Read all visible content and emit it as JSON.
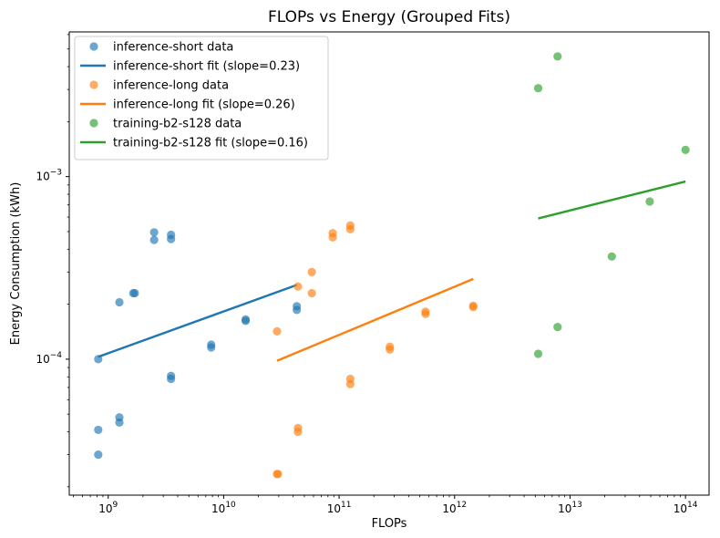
{
  "chart_data": {
    "type": "scatter",
    "title": "FLOPs vs Energy (Grouped Fits)",
    "xlabel": "FLOPs",
    "ylabel": "Energy Consumption (kWh)",
    "xscale": "log",
    "yscale": "log",
    "xlim": [
      460000000.0,
      160000000000000.0
    ],
    "ylim": [
      1.8e-05,
      0.0062
    ],
    "grid": false,
    "legend_position": "top-left",
    "x_ticks": [
      {
        "value": 1000000000.0,
        "base": "10",
        "exp": "9"
      },
      {
        "value": 10000000000.0,
        "base": "10",
        "exp": "10"
      },
      {
        "value": 100000000000.0,
        "base": "10",
        "exp": "11"
      },
      {
        "value": 1000000000000.0,
        "base": "10",
        "exp": "12"
      },
      {
        "value": 10000000000000.0,
        "base": "10",
        "exp": "13"
      },
      {
        "value": 100000000000000.0,
        "base": "10",
        "exp": "14"
      }
    ],
    "y_ticks": [
      {
        "value": 0.0001,
        "base": "10",
        "exp": "−4"
      },
      {
        "value": 0.001,
        "base": "10",
        "exp": "−3"
      }
    ],
    "series": [
      {
        "name": "inference-short data",
        "kind": "scatter",
        "color": "#1f77b4",
        "points": [
          [
            820000000.0,
            0.0001
          ],
          [
            820000000.0,
            4.1e-05
          ],
          [
            820000000.0,
            3e-05
          ],
          [
            1250000000.0,
            0.000205
          ],
          [
            1250000000.0,
            4.8e-05
          ],
          [
            1250000000.0,
            4.5e-05
          ],
          [
            1650000000.0,
            0.00023
          ],
          [
            1700000000.0,
            0.00023
          ],
          [
            2500000000.0,
            0.000495
          ],
          [
            2500000000.0,
            0.00045
          ],
          [
            3500000000.0,
            0.00048
          ],
          [
            3500000000.0,
            0.000455
          ],
          [
            3500000000.0,
            8.1e-05
          ],
          [
            3500000000.0,
            7.8e-05
          ],
          [
            7800000000.0,
            0.00012
          ],
          [
            7800000000.0,
            0.000116
          ],
          [
            15500000000.0,
            0.000165
          ],
          [
            15500000000.0,
            0.000162
          ],
          [
            43000000000.0,
            0.000195
          ],
          [
            43000000000.0,
            0.000186
          ]
        ]
      },
      {
        "name": "inference-short fit (slope=0.23)",
        "kind": "line",
        "color": "#1f77b4",
        "points": [
          [
            820000000.0,
            0.000103
          ],
          [
            43000000000.0,
            0.000255
          ]
        ]
      },
      {
        "name": "inference-long data",
        "kind": "scatter",
        "color": "#ff7f0e",
        "points": [
          [
            29000000000.0,
            0.000142
          ],
          [
            29000000000.0,
            2.35e-05
          ],
          [
            29500000000.0,
            2.35e-05
          ],
          [
            44000000000.0,
            0.00025
          ],
          [
            44000000000.0,
            4.2e-05
          ],
          [
            44000000000.0,
            4e-05
          ],
          [
            58000000000.0,
            0.0003
          ],
          [
            58000000000.0,
            0.00023
          ],
          [
            88000000000.0,
            0.00049
          ],
          [
            88000000000.0,
            0.000465
          ],
          [
            125000000000.0,
            0.00054
          ],
          [
            125000000000.0,
            0.000515
          ],
          [
            125000000000.0,
            7.8e-05
          ],
          [
            125000000000.0,
            7.3e-05
          ],
          [
            275000000000.0,
            0.000117
          ],
          [
            275000000000.0,
            0.000113
          ],
          [
            560000000000.0,
            0.000182
          ],
          [
            560000000000.0,
            0.000177
          ],
          [
            1450000000000.0,
            0.000196
          ],
          [
            1450000000000.0,
            0.000193
          ]
        ]
      },
      {
        "name": "inference-long fit (slope=0.26)",
        "kind": "line",
        "color": "#ff7f0e",
        "points": [
          [
            29000000000.0,
            9.8e-05
          ],
          [
            1450000000000.0,
            0.000275
          ]
        ]
      },
      {
        "name": "training-b2-s128 data",
        "kind": "scatter",
        "color": "#2ca02c",
        "points": [
          [
            5300000000000.0,
            0.00305
          ],
          [
            5300000000000.0,
            0.000107
          ],
          [
            7800000000000.0,
            0.00455
          ],
          [
            7800000000000.0,
            0.00015
          ],
          [
            23000000000000.0,
            0.000365
          ],
          [
            49000000000000.0,
            0.00073
          ],
          [
            100000000000000.0,
            0.0014
          ]
        ]
      },
      {
        "name": "training-b2-s128 fit (slope=0.16)",
        "kind": "line",
        "color": "#2ca02c",
        "points": [
          [
            5300000000000.0,
            0.00059
          ],
          [
            100000000000000.0,
            0.00094
          ]
        ]
      }
    ]
  }
}
